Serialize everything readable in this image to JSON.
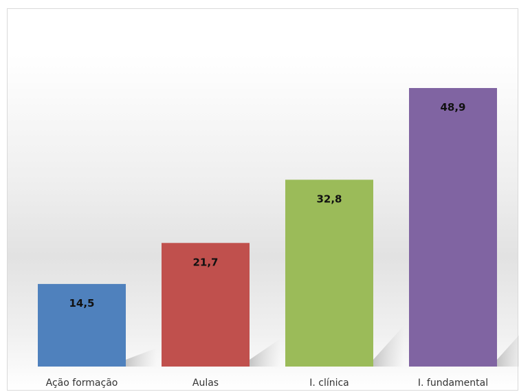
{
  "chart_data": {
    "type": "bar",
    "categories": [
      "Ação formação",
      "Aulas",
      "I. clínica",
      "I. fundamental"
    ],
    "values": [
      14.5,
      21.7,
      32.8,
      48.9
    ],
    "value_labels": [
      "14,5",
      "21,7",
      "32,8",
      "48,9"
    ],
    "colors": [
      "#4f81bd",
      "#c0504d",
      "#9bbb59",
      "#8064a2"
    ],
    "ylim": [
      0,
      55
    ],
    "grid": false,
    "legend": "none",
    "title": "",
    "xlabel": "",
    "ylabel": ""
  }
}
